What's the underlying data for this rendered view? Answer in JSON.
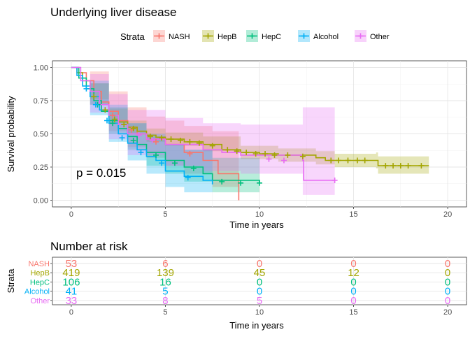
{
  "chart_data": [
    {
      "type": "line",
      "subtype": "kaplan-meier",
      "title": "Underlying liver disease",
      "legend_title": "Strata",
      "legend_position": "top",
      "xlabel": "Time in years",
      "ylabel": "Survival probability",
      "xlim": [
        -1,
        21
      ],
      "ylim": [
        -0.05,
        1.05
      ],
      "xticks": [
        0,
        5,
        10,
        15,
        20
      ],
      "yticks": [
        0,
        0.25,
        0.5,
        0.75,
        1
      ],
      "ytick_labels": [
        "0.00",
        "0.25",
        "0.50",
        "0.75",
        "1.00"
      ],
      "grid": true,
      "annotation": "p = 0.015",
      "series": [
        {
          "name": "NASH",
          "color": "#f8766d",
          "points": [
            [
              0,
              1
            ],
            [
              0.4,
              0.96
            ],
            [
              0.8,
              0.9
            ],
            [
              1.2,
              0.82
            ],
            [
              1.6,
              0.74
            ],
            [
              2.0,
              0.67
            ],
            [
              2.5,
              0.6
            ],
            [
              3.0,
              0.55
            ],
            [
              3.5,
              0.5
            ],
            [
              4.0,
              0.46
            ],
            [
              5.0,
              0.42
            ],
            [
              6.0,
              0.36
            ],
            [
              7.0,
              0.3
            ],
            [
              7.8,
              0.2
            ],
            [
              8.9,
              0.0
            ]
          ],
          "band": [
            [
              0,
              1,
              1
            ],
            [
              1,
              0.97,
              0.72
            ],
            [
              2,
              0.82,
              0.52
            ],
            [
              3,
              0.7,
              0.4
            ],
            [
              4,
              0.63,
              0.32
            ],
            [
              5,
              0.6,
              0.26
            ],
            [
              6,
              0.56,
              0.2
            ],
            [
              7.5,
              0.52,
              0.1
            ],
            [
              8.9,
              0.5,
              0.02
            ]
          ],
          "censor": [
            [
              2.2,
              0.64
            ],
            [
              3.2,
              0.53
            ],
            [
              4.5,
              0.44
            ],
            [
              6.3,
              0.35
            ]
          ]
        },
        {
          "name": "HepB",
          "color": "#a3a500",
          "points": [
            [
              0,
              1
            ],
            [
              0.3,
              0.96
            ],
            [
              0.6,
              0.9
            ],
            [
              1.0,
              0.82
            ],
            [
              1.5,
              0.72
            ],
            [
              2.0,
              0.64
            ],
            [
              2.5,
              0.59
            ],
            [
              3.0,
              0.55
            ],
            [
              3.5,
              0.52
            ],
            [
              4.0,
              0.49
            ],
            [
              4.5,
              0.475
            ],
            [
              5.0,
              0.46
            ],
            [
              6.0,
              0.44
            ],
            [
              7.0,
              0.42
            ],
            [
              8.0,
              0.38
            ],
            [
              9.0,
              0.36
            ],
            [
              10.0,
              0.35
            ],
            [
              11.0,
              0.34
            ],
            [
              13.0,
              0.32
            ],
            [
              13.5,
              0.3
            ],
            [
              16.0,
              0.3
            ],
            [
              16.3,
              0.26
            ],
            [
              19.0,
              0.26
            ]
          ],
          "band": [
            [
              0,
              1,
              1
            ],
            [
              1,
              0.88,
              0.76
            ],
            [
              2,
              0.69,
              0.58
            ],
            [
              3,
              0.6,
              0.5
            ],
            [
              4,
              0.54,
              0.44
            ],
            [
              5,
              0.51,
              0.41
            ],
            [
              7,
              0.48,
              0.37
            ],
            [
              9,
              0.41,
              0.31
            ],
            [
              11,
              0.39,
              0.29
            ],
            [
              13,
              0.37,
              0.27
            ],
            [
              14,
              0.35,
              0.25
            ],
            [
              16.2,
              0.36,
              0.24
            ],
            [
              16.3,
              0.33,
              0.2
            ],
            [
              19,
              0.33,
              0.2
            ]
          ],
          "censor": [
            [
              1.2,
              0.78
            ],
            [
              1.8,
              0.68
            ],
            [
              2.3,
              0.61
            ],
            [
              2.8,
              0.57
            ],
            [
              3.3,
              0.54
            ],
            [
              4.2,
              0.48
            ],
            [
              4.8,
              0.47
            ],
            [
              5.3,
              0.46
            ],
            [
              5.8,
              0.45
            ],
            [
              6.3,
              0.44
            ],
            [
              6.8,
              0.43
            ],
            [
              7.5,
              0.41
            ],
            [
              8.3,
              0.38
            ],
            [
              8.8,
              0.37
            ],
            [
              9.3,
              0.36
            ],
            [
              9.8,
              0.35
            ],
            [
              10.3,
              0.35
            ],
            [
              10.8,
              0.34
            ],
            [
              11.5,
              0.34
            ],
            [
              12.3,
              0.33
            ],
            [
              13.8,
              0.3
            ],
            [
              14.2,
              0.3
            ],
            [
              14.7,
              0.3
            ],
            [
              15.2,
              0.3
            ],
            [
              15.6,
              0.3
            ],
            [
              16.7,
              0.26
            ],
            [
              17.1,
              0.26
            ],
            [
              17.5,
              0.26
            ],
            [
              17.9,
              0.26
            ],
            [
              18.6,
              0.26
            ]
          ]
        },
        {
          "name": "HepC",
          "color": "#00bf7d",
          "points": [
            [
              0,
              1
            ],
            [
              0.4,
              0.92
            ],
            [
              0.8,
              0.84
            ],
            [
              1.2,
              0.75
            ],
            [
              1.6,
              0.67
            ],
            [
              2.0,
              0.6
            ],
            [
              2.5,
              0.54
            ],
            [
              3.0,
              0.48
            ],
            [
              3.5,
              0.42
            ],
            [
              4.0,
              0.36
            ],
            [
              5.0,
              0.3
            ],
            [
              6.0,
              0.25
            ],
            [
              7.0,
              0.2
            ],
            [
              7.5,
              0.15
            ],
            [
              10.0,
              0.13
            ]
          ],
          "band": [
            [
              0,
              1,
              1
            ],
            [
              1,
              0.88,
              0.72
            ],
            [
              2,
              0.7,
              0.5
            ],
            [
              3,
              0.58,
              0.38
            ],
            [
              4,
              0.48,
              0.26
            ],
            [
              5,
              0.42,
              0.2
            ],
            [
              6,
              0.38,
              0.14
            ],
            [
              7.5,
              0.32,
              0.06
            ],
            [
              10,
              0.3,
              0.03
            ]
          ],
          "censor": [
            [
              1.4,
              0.72
            ],
            [
              2.2,
              0.58
            ],
            [
              3.3,
              0.45
            ],
            [
              4.5,
              0.34
            ],
            [
              5.5,
              0.28
            ],
            [
              6.5,
              0.24
            ],
            [
              8.0,
              0.14
            ],
            [
              9.0,
              0.13
            ],
            [
              10.0,
              0.13
            ]
          ]
        },
        {
          "name": "Alcohol",
          "color": "#00b0f6",
          "points": [
            [
              0,
              1
            ],
            [
              0.3,
              0.94
            ],
            [
              0.6,
              0.86
            ],
            [
              1.0,
              0.78
            ],
            [
              1.5,
              0.68
            ],
            [
              2.0,
              0.58
            ],
            [
              2.5,
              0.5
            ],
            [
              3.0,
              0.43
            ],
            [
              3.5,
              0.38
            ],
            [
              4.0,
              0.33
            ],
            [
              4.5,
              0.3
            ],
            [
              5.0,
              0.22
            ],
            [
              6.0,
              0.18
            ],
            [
              7.0,
              0.15
            ],
            [
              7.5,
              0.12
            ]
          ],
          "band": [
            [
              0,
              1,
              1
            ],
            [
              1,
              0.9,
              0.64
            ],
            [
              2,
              0.72,
              0.44
            ],
            [
              3,
              0.58,
              0.3
            ],
            [
              4,
              0.5,
              0.2
            ],
            [
              5,
              0.42,
              0.1
            ],
            [
              6,
              0.38,
              0.06
            ],
            [
              7.5,
              0.36,
              0.02
            ]
          ],
          "censor": [
            [
              0.8,
              0.84
            ],
            [
              1.3,
              0.72
            ],
            [
              1.9,
              0.6
            ],
            [
              2.7,
              0.47
            ],
            [
              3.7,
              0.36
            ],
            [
              4.8,
              0.28
            ],
            [
              6.2,
              0.17
            ]
          ]
        },
        {
          "name": "Other",
          "color": "#e76bf3",
          "points": [
            [
              0,
              1
            ],
            [
              0.5,
              0.9
            ],
            [
              1.0,
              0.82
            ],
            [
              1.5,
              0.72
            ],
            [
              2.0,
              0.64
            ],
            [
              2.5,
              0.57
            ],
            [
              3.0,
              0.5
            ],
            [
              4.0,
              0.46
            ],
            [
              5.0,
              0.42
            ],
            [
              7.0,
              0.38
            ],
            [
              8.0,
              0.36
            ],
            [
              9.0,
              0.34
            ],
            [
              12.3,
              0.3
            ],
            [
              12.35,
              0.15
            ],
            [
              14.0,
              0.15
            ]
          ],
          "band": [
            [
              0,
              1,
              1
            ],
            [
              1,
              0.95,
              0.66
            ],
            [
              2,
              0.8,
              0.46
            ],
            [
              3,
              0.68,
              0.34
            ],
            [
              5,
              0.62,
              0.26
            ],
            [
              7,
              0.58,
              0.22
            ],
            [
              9,
              0.57,
              0.2
            ],
            [
              12.3,
              0.7,
              0.04
            ],
            [
              14,
              0.7,
              0.04
            ]
          ],
          "censor": [
            [
              3.6,
              0.49
            ],
            [
              4.3,
              0.45
            ],
            [
              10.5,
              0.31
            ],
            [
              11.3,
              0.3
            ],
            [
              14.0,
              0.15
            ]
          ]
        }
      ]
    },
    {
      "type": "table",
      "title": "Number at risk",
      "ylabel": "Strata",
      "xlabel": "Time in years",
      "x": [
        0,
        5,
        10,
        15,
        20
      ],
      "rows": [
        {
          "name": "NASH",
          "color": "#f8766d",
          "values": [
            53,
            6,
            0,
            0,
            0
          ]
        },
        {
          "name": "HepB",
          "color": "#a3a500",
          "values": [
            419,
            139,
            45,
            12,
            0
          ]
        },
        {
          "name": "HepC",
          "color": "#00bf7d",
          "values": [
            106,
            16,
            0,
            0,
            0
          ]
        },
        {
          "name": "Alcohol",
          "color": "#00b0f6",
          "values": [
            41,
            5,
            0,
            0,
            0
          ]
        },
        {
          "name": "Other",
          "color": "#e76bf3",
          "values": [
            33,
            8,
            5,
            0,
            0
          ]
        }
      ]
    }
  ]
}
